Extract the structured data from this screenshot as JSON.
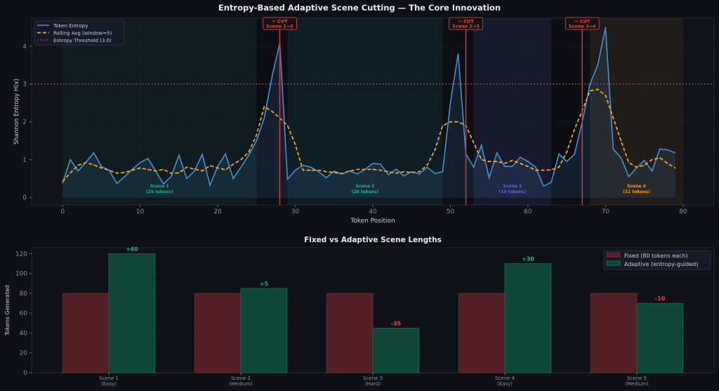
{
  "colors": {
    "background": "#0e1016",
    "axes_bg": "#10131a",
    "token_entropy": "#4a8fd6",
    "rolling_avg": "#f5a623",
    "threshold": "#e04848",
    "cut": "#c23a41",
    "fixed": "#521f26",
    "adaptive": "#0f4536",
    "positive": "#10b981",
    "negative": "#ef4444"
  },
  "chart_data": [
    {
      "type": "line",
      "title": "Entropy-Based Adaptive Scene Cutting — The Core Innovation",
      "xlabel": "Token Position",
      "ylabel": "Shannon Entropy H(x)",
      "xlim": [
        -4,
        84
      ],
      "ylim": [
        -0.2,
        4.74
      ],
      "xticks": [
        0,
        10,
        20,
        30,
        40,
        50,
        60,
        70,
        80
      ],
      "yticks": [
        0,
        1,
        2,
        3,
        4
      ],
      "grid": true,
      "legend_position": "top-left",
      "x": [
        0,
        1,
        2,
        3,
        4,
        5,
        6,
        7,
        8,
        9,
        10,
        11,
        12,
        13,
        14,
        15,
        16,
        17,
        18,
        19,
        20,
        21,
        22,
        23,
        24,
        25,
        26,
        27,
        28,
        29,
        30,
        31,
        32,
        33,
        34,
        35,
        36,
        37,
        38,
        39,
        40,
        41,
        42,
        43,
        44,
        45,
        46,
        47,
        48,
        49,
        50,
        51,
        52,
        53,
        54,
        55,
        56,
        57,
        58,
        59,
        60,
        61,
        62,
        63,
        64,
        65,
        66,
        67,
        68,
        69,
        70,
        71,
        72,
        73,
        74,
        75,
        76,
        77,
        78,
        79
      ],
      "series": [
        {
          "name": "Token Entropy",
          "style": "solid",
          "values": [
            0.38,
            1.0,
            0.7,
            0.93,
            1.18,
            0.82,
            0.72,
            0.37,
            0.55,
            0.75,
            0.92,
            1.03,
            0.7,
            0.36,
            0.55,
            1.12,
            0.5,
            0.7,
            1.14,
            0.32,
            0.82,
            1.15,
            0.5,
            0.8,
            1.12,
            1.5,
            2.1,
            3.2,
            4.08,
            0.48,
            0.72,
            0.85,
            0.8,
            0.68,
            0.52,
            0.7,
            0.62,
            0.7,
            0.62,
            0.74,
            0.9,
            0.88,
            0.6,
            0.75,
            0.57,
            0.68,
            0.62,
            0.8,
            0.63,
            0.68,
            2.5,
            3.8,
            1.15,
            0.8,
            1.38,
            0.52,
            1.18,
            0.82,
            0.82,
            1.06,
            0.95,
            0.8,
            0.3,
            0.4,
            1.15,
            0.95,
            1.14,
            2.0,
            3.0,
            3.5,
            4.5,
            1.28,
            1.05,
            0.55,
            0.78,
            0.98,
            0.7,
            1.28,
            1.26,
            1.18
          ]
        },
        {
          "name": "Rolling Avg (window=5)",
          "style": "dashed",
          "values": [
            0.42,
            0.65,
            0.85,
            0.92,
            0.86,
            0.78,
            0.72,
            0.64,
            0.66,
            0.72,
            0.78,
            0.74,
            0.7,
            0.74,
            0.64,
            0.65,
            0.8,
            0.75,
            0.7,
            0.84,
            0.78,
            0.73,
            0.88,
            1.0,
            1.2,
            1.65,
            2.4,
            2.28,
            2.1,
            1.9,
            1.4,
            0.72,
            0.72,
            0.72,
            0.68,
            0.66,
            0.63,
            0.7,
            0.74,
            0.74,
            0.74,
            0.72,
            0.68,
            0.64,
            0.68,
            0.66,
            0.68,
            0.85,
            1.25,
            1.9,
            2.0,
            2.0,
            1.9,
            1.45,
            1.0,
            0.95,
            0.95,
            0.9,
            0.98,
            0.9,
            0.82,
            0.72,
            0.72,
            0.73,
            0.8,
            1.2,
            1.8,
            2.3,
            2.82,
            2.86,
            2.7,
            2.1,
            1.5,
            0.92,
            0.8,
            0.85,
            1.0,
            1.05,
            0.9,
            0.78
          ]
        }
      ],
      "threshold": {
        "name": "Entropy Threshold (3.0)",
        "value": 3.0
      },
      "cuts": [
        {
          "position": 28,
          "icon": "scissors-icon",
          "label": "✂ CUT",
          "sublabel": "Scene 1→2"
        },
        {
          "position": 52,
          "icon": "scissors-icon",
          "label": "✂ CUT",
          "sublabel": "Scene 2→3"
        },
        {
          "position": 67,
          "icon": "scissors-icon",
          "label": "✂ CUT",
          "sublabel": "Scene 3→4"
        }
      ],
      "scenes": [
        {
          "label": "Scene 1",
          "tokens": "(25 tokens)",
          "start": 0,
          "end": 25,
          "color": "#10b981"
        },
        {
          "label": "Scene 2",
          "tokens": "(20 tokens)",
          "start": 29,
          "end": 49,
          "color": "#14b8a6"
        },
        {
          "label": "Scene 3",
          "tokens": "(10 tokens)",
          "start": 53,
          "end": 63,
          "color": "#6d5cf0"
        },
        {
          "label": "Scene 4",
          "tokens": "(12 tokens)",
          "start": 68,
          "end": 80,
          "color": "#f59e0b"
        }
      ]
    },
    {
      "type": "bar",
      "title": "Fixed vs Adaptive Scene Lengths",
      "xlabel": "",
      "ylabel": "Tokens Generated",
      "ylim": [
        0,
        126
      ],
      "yticks": [
        0,
        20,
        40,
        60,
        80,
        100,
        120
      ],
      "grid": true,
      "legend_position": "top-right",
      "categories": [
        [
          "Scene 1",
          "(Easy)"
        ],
        [
          "Scene 2",
          "(Medium)"
        ],
        [
          "Scene 3",
          "(Hard)"
        ],
        [
          "Scene 4",
          "(Easy)"
        ],
        [
          "Scene 5",
          "(Medium)"
        ]
      ],
      "series": [
        {
          "name": "Fixed (80 tokens each)",
          "values": [
            80,
            80,
            80,
            80,
            80
          ]
        },
        {
          "name": "Adaptive (entropy-guided)",
          "values": [
            120,
            85,
            45,
            110,
            70
          ]
        }
      ],
      "data_labels": [
        "+40",
        "+5",
        "-35",
        "+30",
        "-10"
      ]
    }
  ]
}
